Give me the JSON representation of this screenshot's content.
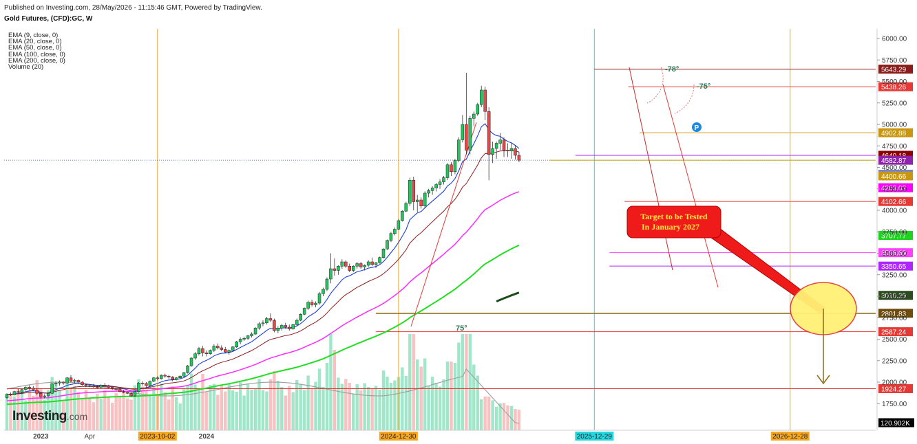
{
  "header": {
    "published": "Published on Investing.com, 28/May/2026 - 11:15:46 GMT, Powered by TradingView.",
    "instrument": "Gold Futures, (CFD):GC, W"
  },
  "indicators": [
    "EMA (9, close, 0)",
    "EMA (20, close, 0)",
    "EMA (50, close, 0)",
    "EMA (100, close, 0)",
    "EMA (200, close, 0)",
    "Volume (20)"
  ],
  "logo": {
    "main": "Investing",
    "suffix": ".com"
  },
  "annotation": {
    "line1": "Target to be Tested",
    "line2": "In January 2027"
  },
  "angle_labels": [
    "-78°",
    "-75°",
    "75°"
  ],
  "chart_data": {
    "type": "candlestick",
    "timeframe": "weekly",
    "y_range": [
      1550,
      6100
    ],
    "y_ticks": [
      1750,
      2000,
      2250,
      2500,
      2750,
      3000,
      3250,
      3500,
      3750,
      4000,
      4250,
      4500,
      4750,
      5000,
      5250,
      5500,
      5750,
      6000
    ],
    "y_tick_labels": [
      "1750.00",
      "2000.00",
      "2250.00",
      "2500.00",
      "2750.00",
      "3000.00",
      "3250.00",
      "3500.00",
      "3750.00",
      "4000.00",
      "4250.00",
      "4500.00",
      "4750.00",
      "5000.00",
      "5250.00",
      "5500.00",
      "5750.00",
      "6000.00"
    ],
    "x_labels": [
      {
        "text": "2023",
        "week": 9,
        "type": "plain"
      },
      {
        "text": "Apr",
        "week": 22,
        "type": "plain"
      },
      {
        "text": "2023-10-02",
        "week": 40,
        "type": "orange"
      },
      {
        "text": "2024",
        "week": 53,
        "type": "plain"
      },
      {
        "text": "2024-12-30",
        "week": 104,
        "type": "orange"
      },
      {
        "text": "2025-12-29",
        "week": 156,
        "type": "cyan"
      },
      {
        "text": "2026-12-28",
        "week": 208,
        "type": "orange"
      }
    ],
    "vertical_lines": [
      {
        "week": 40,
        "color": "#f5a623"
      },
      {
        "week": 104,
        "color": "#f5a623"
      },
      {
        "week": 156,
        "color": "#26d7e0"
      },
      {
        "week": 208,
        "color": "#f5a623"
      }
    ],
    "horizontal_levels": [
      {
        "value": 5643.29,
        "color": "#8b1c1c",
        "label_bg": "#8b1c1c",
        "from_week": 156
      },
      {
        "value": 5438.26,
        "color": "#e53935",
        "label_bg": "#e53935",
        "from_week": 165
      },
      {
        "value": 4902.88,
        "color": "#d4a017",
        "label_bg": "#c8960f",
        "from_week": 168
      },
      {
        "value": 4640.71,
        "color": "#1a1aff",
        "label_bg": "#1a1aff",
        "from_week": 0,
        "line": false
      },
      {
        "value": 4640.18,
        "color": "#b026ff",
        "label_bg": "#8b0000",
        "from_week": 151
      },
      {
        "value": 4582.87,
        "color": "#c8a200",
        "label_bg": "#8e24aa",
        "from_week": 144
      },
      {
        "value": 4419.09,
        "color": "#5c6bc0",
        "label_bg": "#5c7cfa",
        "from_week": 0,
        "line": false
      },
      {
        "value": 4400.66,
        "color": "#c8960f",
        "label_bg": "#c8960f",
        "from_week": 0,
        "line": false
      },
      {
        "value": 4263.02,
        "color": "#ff00ff",
        "label_bg": "#ff00ff",
        "from_week": 0,
        "line": false
      },
      {
        "value": 4102.66,
        "color": "#e53935",
        "label_bg": "#e53935",
        "from_week": 164
      },
      {
        "value": 3707.77,
        "color": "#1fd21f",
        "label_bg": "#1fd21f",
        "from_week": 0,
        "line": false
      },
      {
        "value": 3506.69,
        "color": "#ff40ff",
        "label_bg": "#ff40ff",
        "from_week": 160
      },
      {
        "value": 3350.65,
        "color": "#b026ff",
        "label_bg": "#b026ff",
        "from_week": 160
      },
      {
        "value": 3010.29,
        "color": "#1b5e20",
        "label_bg": "#2e4d1f",
        "from_week": 0,
        "line": false
      },
      {
        "value": 2801.83,
        "color": "#8b6914",
        "label_bg": "#6d4c0f",
        "from_week": 98
      },
      {
        "value": 2587.24,
        "color": "#e53935",
        "label_bg": "#e53935",
        "from_week": 98
      },
      {
        "value": 1924.27,
        "color": "#e53935",
        "label_bg": "#e53935",
        "from_week": 0
      }
    ],
    "dotted_price_line": 4582.87,
    "volume_label": "120.902K",
    "candles_approx": [
      [
        1820,
        1870,
        1800,
        1860
      ],
      [
        1860,
        1880,
        1840,
        1850
      ],
      [
        1850,
        1900,
        1845,
        1890
      ],
      [
        1890,
        1920,
        1870,
        1880
      ],
      [
        1880,
        1925,
        1860,
        1915
      ],
      [
        1915,
        1950,
        1900,
        1940
      ],
      [
        1940,
        1965,
        1910,
        1930
      ],
      [
        1930,
        1955,
        1900,
        1910
      ],
      [
        1910,
        1930,
        1850,
        1870
      ],
      [
        1870,
        1880,
        1810,
        1830
      ],
      [
        1830,
        1860,
        1810,
        1840
      ],
      [
        1840,
        1880,
        1830,
        1870
      ],
      [
        1870,
        1990,
        1860,
        1980
      ],
      [
        1980,
        2010,
        1950,
        1990
      ],
      [
        1990,
        2020,
        1960,
        2000
      ],
      [
        2000,
        2010,
        1970,
        1990
      ],
      [
        1990,
        2060,
        1980,
        2050
      ],
      [
        2050,
        2080,
        2000,
        2010
      ],
      [
        2010,
        2040,
        1990,
        2020
      ],
      [
        2020,
        2030,
        1980,
        2000
      ],
      [
        2000,
        2010,
        1960,
        1970
      ],
      [
        1970,
        1985,
        1940,
        1960
      ],
      [
        1960,
        1975,
        1940,
        1955
      ],
      [
        1955,
        1980,
        1935,
        1945
      ],
      [
        1945,
        1965,
        1925,
        1940
      ],
      [
        1940,
        1975,
        1930,
        1965
      ],
      [
        1965,
        1990,
        1950,
        1960
      ],
      [
        1960,
        1970,
        1930,
        1940
      ],
      [
        1940,
        1950,
        1910,
        1925
      ],
      [
        1925,
        1940,
        1900,
        1920
      ],
      [
        1920,
        1935,
        1880,
        1890
      ],
      [
        1890,
        1910,
        1870,
        1880
      ],
      [
        1880,
        1890,
        1860,
        1870
      ],
      [
        1870,
        1880,
        1830,
        1840
      ],
      [
        1840,
        1900,
        1830,
        1890
      ],
      [
        1890,
        2000,
        1880,
        1990
      ],
      [
        1990,
        2010,
        1960,
        1985
      ],
      [
        1985,
        2000,
        1940,
        1960
      ],
      [
        1960,
        2020,
        1950,
        2010
      ],
      [
        2010,
        2060,
        2000,
        2050
      ],
      [
        2050,
        2070,
        2020,
        2040
      ],
      [
        2040,
        2090,
        2030,
        2080
      ],
      [
        2080,
        2100,
        2050,
        2070
      ],
      [
        2070,
        2085,
        2040,
        2060
      ],
      [
        2060,
        2070,
        2010,
        2030
      ],
      [
        2030,
        2060,
        2020,
        2050
      ],
      [
        2050,
        2080,
        2040,
        2070
      ],
      [
        2070,
        2120,
        2060,
        2110
      ],
      [
        2110,
        2200,
        2100,
        2190
      ],
      [
        2190,
        2290,
        2180,
        2280
      ],
      [
        2280,
        2350,
        2260,
        2330
      ],
      [
        2330,
        2410,
        2310,
        2390
      ],
      [
        2390,
        2420,
        2300,
        2340
      ],
      [
        2340,
        2370,
        2300,
        2330
      ],
      [
        2330,
        2380,
        2320,
        2370
      ],
      [
        2370,
        2440,
        2350,
        2420
      ],
      [
        2420,
        2450,
        2380,
        2400
      ],
      [
        2400,
        2430,
        2360,
        2380
      ],
      [
        2380,
        2410,
        2340,
        2350
      ],
      [
        2350,
        2380,
        2320,
        2370
      ],
      [
        2370,
        2420,
        2360,
        2410
      ],
      [
        2410,
        2480,
        2400,
        2470
      ],
      [
        2470,
        2520,
        2440,
        2500
      ],
      [
        2500,
        2530,
        2480,
        2510
      ],
      [
        2510,
        2550,
        2490,
        2540
      ],
      [
        2540,
        2580,
        2520,
        2560
      ],
      [
        2560,
        2640,
        2550,
        2630
      ],
      [
        2630,
        2700,
        2610,
        2680
      ],
      [
        2680,
        2720,
        2650,
        2690
      ],
      [
        2690,
        2760,
        2670,
        2740
      ],
      [
        2740,
        2800,
        2700,
        2720
      ],
      [
        2720,
        2740,
        2580,
        2600
      ],
      [
        2600,
        2650,
        2570,
        2630
      ],
      [
        2630,
        2680,
        2600,
        2660
      ],
      [
        2660,
        2690,
        2620,
        2640
      ],
      [
        2640,
        2670,
        2600,
        2620
      ],
      [
        2620,
        2680,
        2610,
        2670
      ],
      [
        2670,
        2740,
        2660,
        2720
      ],
      [
        2720,
        2800,
        2710,
        2790
      ],
      [
        2790,
        2870,
        2780,
        2860
      ],
      [
        2860,
        2950,
        2840,
        2930
      ],
      [
        2930,
        2960,
        2880,
        2900
      ],
      [
        2900,
        2940,
        2870,
        2920
      ],
      [
        2920,
        3050,
        2900,
        3030
      ],
      [
        3030,
        3100,
        3000,
        3080
      ],
      [
        3080,
        3220,
        3060,
        3200
      ],
      [
        3200,
        3500,
        3150,
        3320
      ],
      [
        3320,
        3440,
        3240,
        3300
      ],
      [
        3300,
        3360,
        3250,
        3350
      ],
      [
        3350,
        3430,
        3320,
        3400
      ],
      [
        3400,
        3420,
        3330,
        3350
      ],
      [
        3350,
        3380,
        3280,
        3300
      ],
      [
        3300,
        3360,
        3280,
        3350
      ],
      [
        3350,
        3400,
        3320,
        3380
      ],
      [
        3380,
        3400,
        3320,
        3340
      ],
      [
        3340,
        3370,
        3300,
        3360
      ],
      [
        3360,
        3420,
        3340,
        3400
      ],
      [
        3400,
        3450,
        3350,
        3370
      ],
      [
        3370,
        3400,
        3330,
        3390
      ],
      [
        3390,
        3460,
        3380,
        3450
      ],
      [
        3450,
        3560,
        3440,
        3550
      ],
      [
        3550,
        3660,
        3540,
        3650
      ],
      [
        3650,
        3750,
        3630,
        3730
      ],
      [
        3730,
        3800,
        3710,
        3780
      ],
      [
        3780,
        3900,
        3770,
        3880
      ],
      [
        3880,
        4000,
        3870,
        3990
      ],
      [
        3990,
        4100,
        3980,
        4080
      ],
      [
        4080,
        4380,
        4050,
        4350
      ],
      [
        4350,
        4390,
        4000,
        4100
      ],
      [
        4100,
        4180,
        3980,
        4120
      ],
      [
        4120,
        4150,
        4020,
        4050
      ],
      [
        4050,
        4220,
        4030,
        4200
      ],
      [
        4200,
        4250,
        4150,
        4230
      ],
      [
        4230,
        4280,
        4180,
        4260
      ],
      [
        4260,
        4320,
        4220,
        4300
      ],
      [
        4300,
        4360,
        4250,
        4330
      ],
      [
        4330,
        4400,
        4300,
        4380
      ],
      [
        4380,
        4550,
        4350,
        4530
      ],
      [
        4530,
        4560,
        4400,
        4450
      ],
      [
        4450,
        4600,
        4420,
        4580
      ],
      [
        4580,
        4850,
        4560,
        4820
      ],
      [
        4820,
        5110,
        4790,
        5000
      ],
      [
        5000,
        5600,
        4650,
        4700
      ],
      [
        4700,
        5100,
        4650,
        5070
      ],
      [
        5070,
        5150,
        4980,
        5120
      ],
      [
        5120,
        5250,
        5100,
        5230
      ],
      [
        5230,
        5450,
        5200,
        5400
      ],
      [
        5400,
        5440,
        5050,
        5150
      ],
      [
        5150,
        5200,
        4350,
        4650
      ],
      [
        4650,
        4800,
        4550,
        4720
      ],
      [
        4720,
        4800,
        4600,
        4780
      ],
      [
        4780,
        4900,
        4700,
        4820
      ],
      [
        4820,
        4850,
        4620,
        4700
      ],
      [
        4700,
        4780,
        4620,
        4690
      ],
      [
        4690,
        4780,
        4600,
        4720
      ],
      [
        4720,
        4760,
        4590,
        4640
      ],
      [
        4640,
        4680,
        4560,
        4582.87
      ]
    ]
  }
}
